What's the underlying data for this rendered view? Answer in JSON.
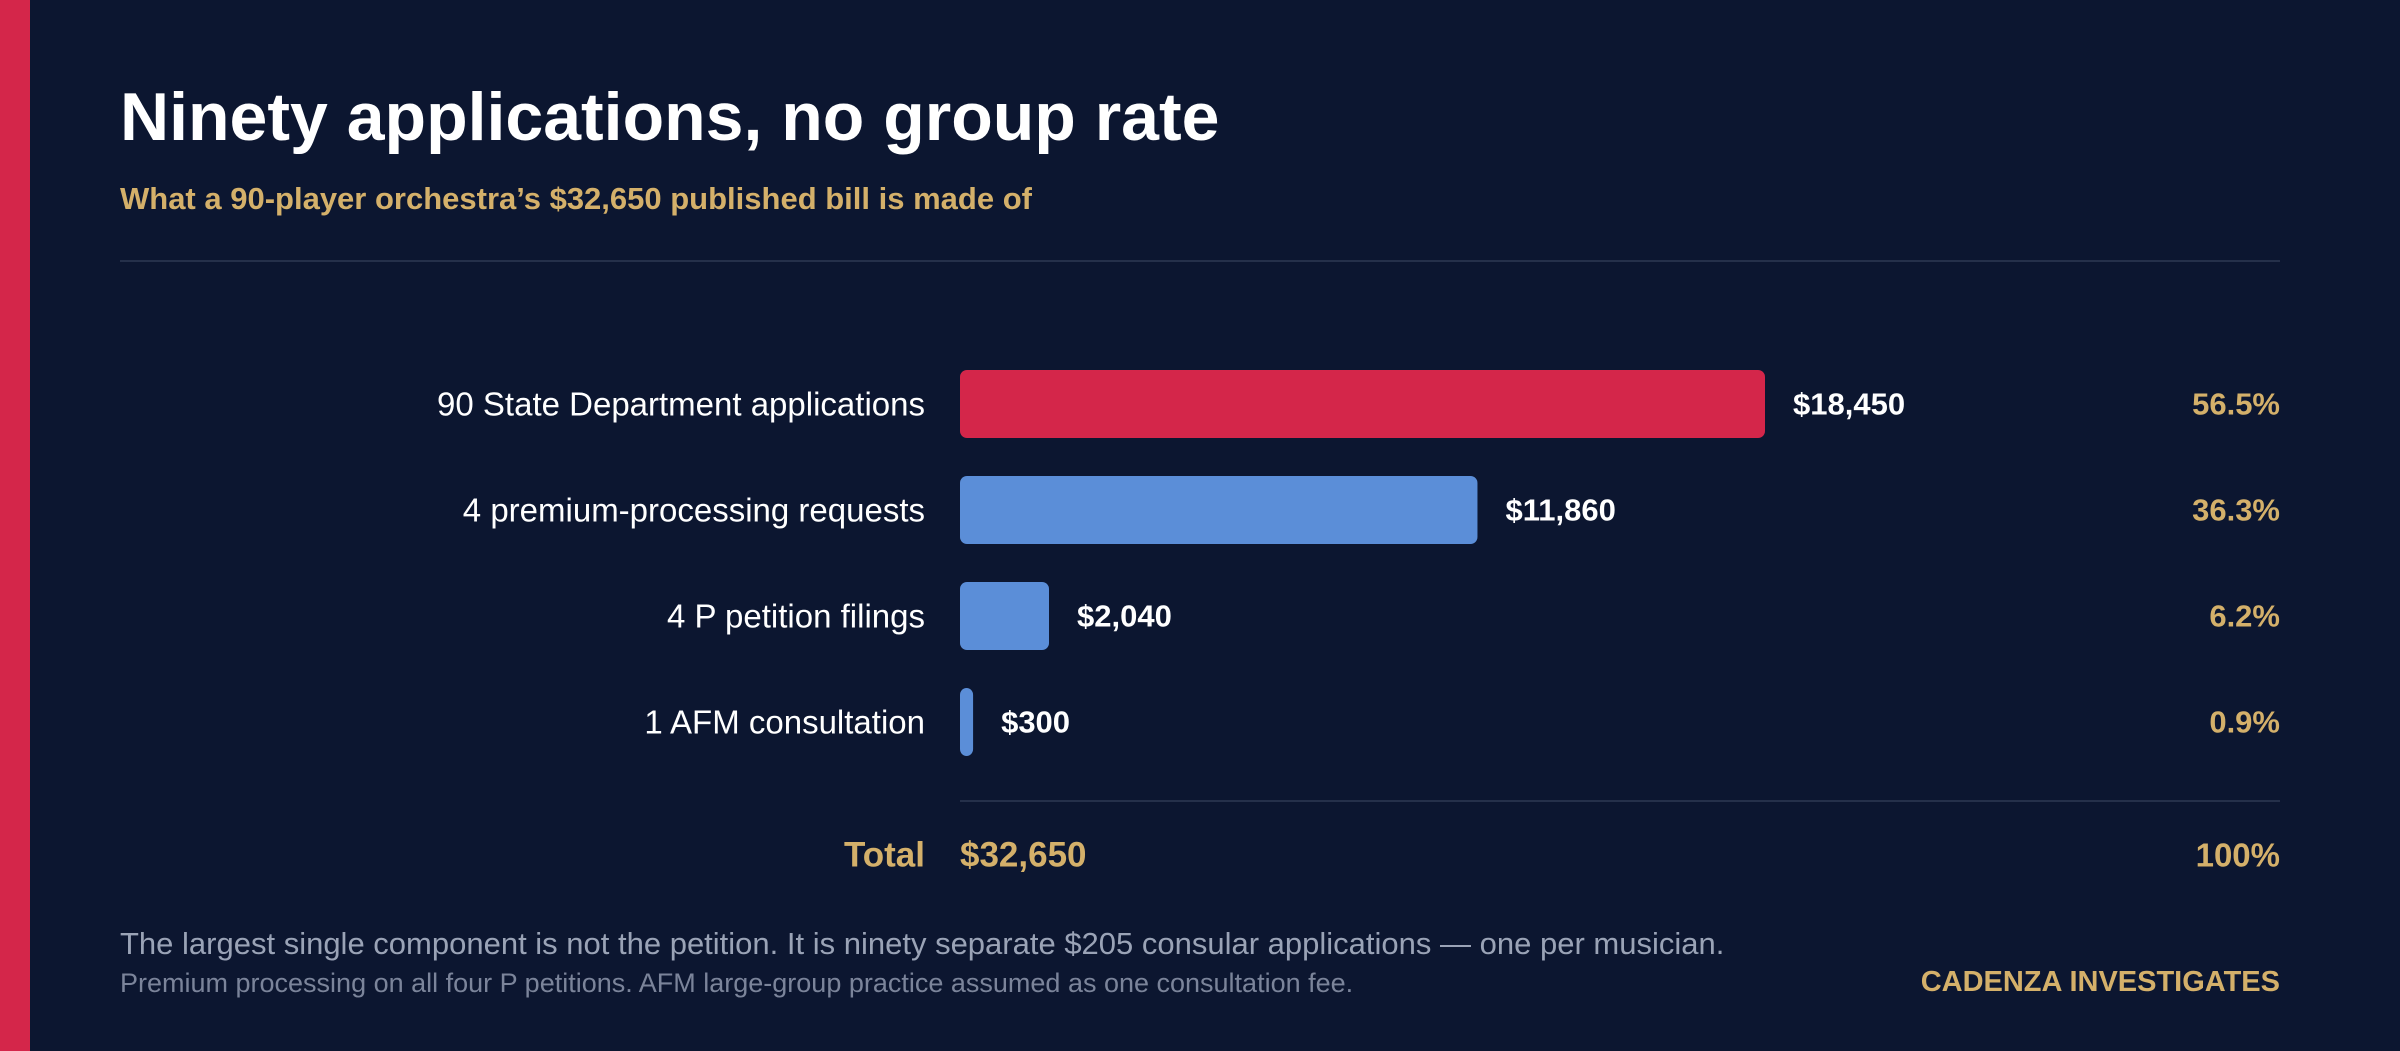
{
  "header": {
    "title": "Ninety applications, no group rate",
    "subtitle": "What a 90-player orchestra’s $32,650 published bill is made of"
  },
  "chart_data": {
    "type": "bar",
    "orientation": "horizontal",
    "categories": [
      "90 State Department applications",
      "4 premium-processing requests",
      "4 P petition filings",
      "1 AFM consultation"
    ],
    "values": [
      18450,
      11860,
      2040,
      300
    ],
    "value_labels": [
      "$18,450",
      "$11,860",
      "$2,040",
      "$300"
    ],
    "percent_labels": [
      "56.5%",
      "36.3%",
      "6.2%",
      "0.9%"
    ],
    "bar_colors": [
      "#d4264a",
      "#5b8ed8",
      "#5b8ed8",
      "#5b8ed8"
    ],
    "total": {
      "label": "Total",
      "value": 32650,
      "value_label": "$32,650",
      "percent_label": "100%"
    },
    "xlim": [
      0,
      18450
    ],
    "grid": false,
    "legend": "none"
  },
  "footnotes": {
    "main": "The largest single component is not the petition. It is ninety separate $205 consular applications — one per musician.",
    "sub": "Premium processing on all four P petitions. AFM large-group practice assumed as one consultation fee."
  },
  "brand": {
    "label": "CADENZA INVESTIGATES"
  },
  "colors": {
    "background": "#0c1630",
    "accent_red": "#d4264a",
    "bar_blue": "#5b8ed8",
    "gold": "#d4b06a"
  }
}
